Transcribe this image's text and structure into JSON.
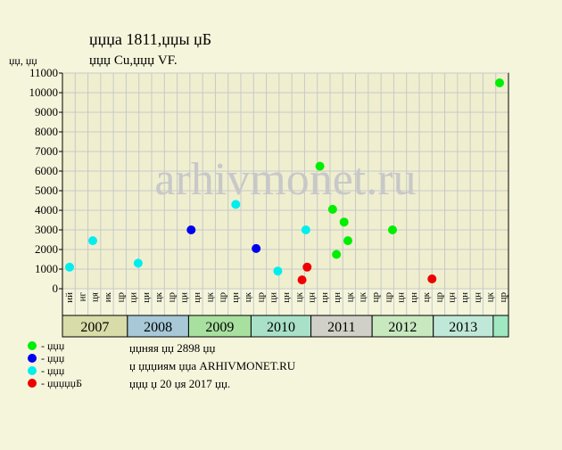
{
  "chart_data": {
    "type": "scatter",
    "title": "џџџа 1811,џџы џБ",
    "subtitle": "џџџ Cu,џџџ VF.",
    "y_label": "џџ, џџ",
    "watermark": "arhivmonet.ru",
    "ylim": [
      0,
      11000
    ],
    "yticks": [
      0,
      1000,
      2000,
      3000,
      4000,
      5000,
      6000,
      7000,
      8000,
      9000,
      10000,
      11000
    ],
    "xlim": [
      0,
      35
    ],
    "grid": true,
    "categories": [
      "ий",
      "иг",
      "ця",
      "ик",
      "цр",
      "ци",
      "ци",
      "цк",
      "цр",
      "ци",
      "цн",
      "цк",
      "цр",
      "цн",
      "цк",
      "цр",
      "ци",
      "цн",
      "цк",
      "цн",
      "цн",
      "цн",
      "цк",
      "цк",
      "цр",
      "цр",
      "цн",
      "цн",
      "цк",
      "цр",
      "цн",
      "цн",
      "цн",
      "цк",
      "цр"
    ],
    "year_bands": [
      {
        "label": "2007",
        "from": 0,
        "to": 5.1,
        "color": "#d8dca8"
      },
      {
        "label": "2008",
        "from": 5.1,
        "to": 9.9,
        "color": "#a8c8d8"
      },
      {
        "label": "2009",
        "from": 9.9,
        "to": 14.8,
        "color": "#a8e0a0"
      },
      {
        "label": "2010",
        "from": 14.8,
        "to": 19.5,
        "color": "#a8e0c8"
      },
      {
        "label": "2011",
        "from": 19.5,
        "to": 24.3,
        "color": "#d0d0c8"
      },
      {
        "label": "2012",
        "from": 24.3,
        "to": 29.1,
        "color": "#c8e8c0"
      },
      {
        "label": "2013",
        "from": 29.1,
        "to": 33.8,
        "color": "#c0e8d8"
      }
    ],
    "series": [
      {
        "name": "- џџџ",
        "color": "#00ee00",
        "x": [
          20.2,
          21.2,
          22.1,
          21.5,
          22.4,
          25.9,
          34.3
        ],
        "values": [
          6250,
          4050,
          3400,
          1750,
          2450,
          3000,
          10500
        ]
      },
      {
        "name": "- џџџ",
        "color": "#0000ee",
        "x": [
          10.1,
          15.2
        ],
        "values": [
          3000,
          2050
        ]
      },
      {
        "name": "- џџџ",
        "color": "#00eeee",
        "x": [
          0.56,
          2.38,
          5.94,
          13.6,
          16.9,
          19.1
        ],
        "values": [
          1100,
          2450,
          1300,
          4300,
          900,
          3000
        ]
      },
      {
        "name": "- џџџџџБ",
        "color": "#ee0000",
        "x": [
          18.8,
          19.2,
          29.0
        ],
        "values": [
          450,
          1100,
          500
        ]
      }
    ],
    "notes": [
      "џџняя џџ 2898 џџ",
      "џ џџџиям џџа ARHIVMONET.RU",
      "џџџ џ 20 џя 2017 џџ."
    ]
  }
}
